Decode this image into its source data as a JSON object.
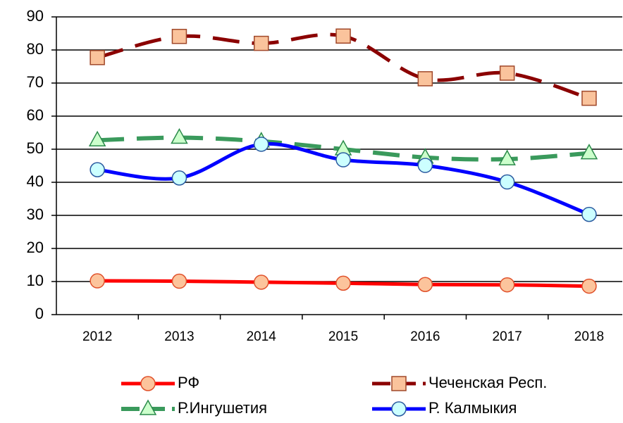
{
  "chart_data": {
    "type": "line",
    "categories": [
      "2012",
      "2013",
      "2014",
      "2015",
      "2016",
      "2017",
      "2018"
    ],
    "ylim": [
      0,
      90
    ],
    "yticks": [
      0,
      10,
      20,
      30,
      40,
      50,
      60,
      70,
      80,
      90
    ],
    "grid": true,
    "series": [
      {
        "name": "РФ",
        "color": "#ff0000",
        "values": [
          10.2,
          10.1,
          9.8,
          9.5,
          9.1,
          9.0,
          8.6
        ]
      },
      {
        "name": "Чеченская Респ.",
        "color": "#8b0000",
        "values": [
          77.7,
          84.1,
          82.0,
          84.2,
          71.3,
          73.0,
          65.4
        ]
      },
      {
        "name": "Р.Ингушетия",
        "color": "#3a9a5c",
        "values": [
          52.7,
          53.5,
          52.4,
          50.0,
          47.5,
          47.0,
          48.8
        ]
      },
      {
        "name": "Р. Калмыкия",
        "color": "#0000ff",
        "values": [
          43.8,
          41.3,
          51.5,
          46.8,
          45.1,
          40.1,
          30.3
        ]
      }
    ]
  }
}
